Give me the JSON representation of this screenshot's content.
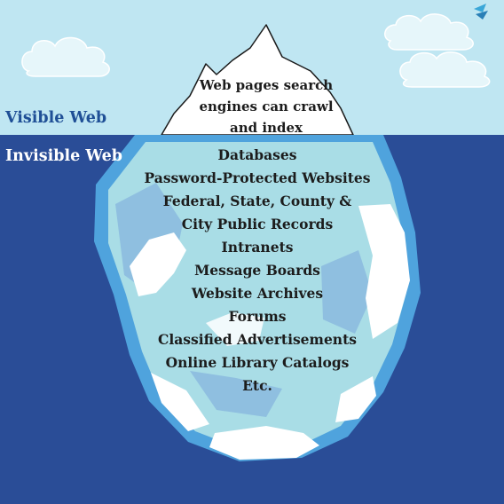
{
  "layers": {
    "visible": "Visible Web",
    "invisible": "Invisible Web"
  },
  "tip": {
    "lines": [
      "Web pages search",
      "engines can crawl",
      "and index"
    ]
  },
  "hidden_items": [
    "Databases",
    "Password-Protected Websites",
    "Federal, State, County &",
    "City Public Records",
    "Intranets",
    "Message Boards",
    "Website Archives",
    "Forums",
    "Classified Advertisements",
    "Online Library Catalogs",
    "Etc."
  ],
  "colors": {
    "sky": "#bfe6f2",
    "ocean": "#2a4d97",
    "ice_edge": "#4fa3dd",
    "ice_body": "#a9dde6",
    "ice_shadow": "#8fbfe0",
    "ice_white": "#ffffff",
    "visible_label": "#1f4f96",
    "invisible_label": "#ffffff"
  }
}
